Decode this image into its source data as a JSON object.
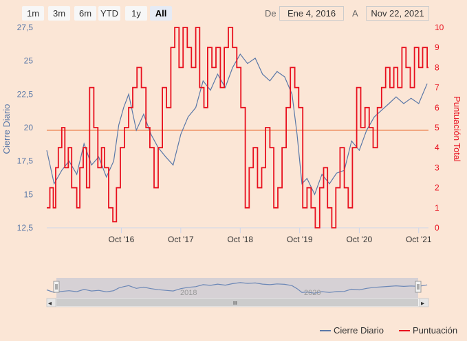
{
  "range_selector": {
    "buttons": [
      "1m",
      "3m",
      "6m",
      "YTD",
      "1y",
      "All"
    ],
    "selected": "All",
    "from_label": "De",
    "from_value": "Ene 4, 2016",
    "to_label": "A",
    "to_value": "Nov 22, 2021"
  },
  "navigator": {
    "year_labels": [
      "2018",
      "2020"
    ],
    "scroll_left_arrow": "◂",
    "scroll_right_arrow": "▸",
    "scroll_grip": "III"
  },
  "legend_placement": "bottom-right",
  "colors": {
    "price_line": "#5a78a8",
    "score_line": "#e8101e",
    "plot_band_line": "#f0a27a",
    "left_axis_text": "#5a78a8",
    "right_axis_text": "#e8101e",
    "navigator_mask": "#c9c9d4",
    "navigator_line": "#6b87b6"
  },
  "chart_data": {
    "type": "line",
    "x_type": "datetime",
    "x_range": [
      "2015-07-01",
      "2021-11-30"
    ],
    "x_ticks": [
      "Oct '16",
      "Oct '17",
      "Oct '18",
      "Oct '19",
      "Oct '20",
      "Oct '21"
    ],
    "x_tick_dates": [
      "2016-10-01",
      "2017-10-01",
      "2018-10-01",
      "2019-10-01",
      "2020-10-01",
      "2021-10-01"
    ],
    "y_left": {
      "label": "Cierre Diario",
      "range": [
        12.5,
        27.5
      ],
      "ticks": [
        "27,5",
        "25",
        "22,5",
        "20",
        "17,5",
        "15",
        "12,5"
      ],
      "tick_values": [
        27.5,
        25,
        22.5,
        20,
        17.5,
        15,
        12.5
      ]
    },
    "y_right": {
      "label": "Puntuación Total",
      "range": [
        0,
        10
      ],
      "ticks": [
        "10",
        "9",
        "8",
        "7",
        "6",
        "5",
        "4",
        "3",
        "2",
        "1",
        "0"
      ],
      "tick_values": [
        10,
        9,
        8,
        7,
        6,
        5,
        4,
        3,
        2,
        1,
        0
      ]
    },
    "plot_band_value_left_axis": 19.8,
    "grid": false,
    "series": [
      {
        "name": "Cierre Diario",
        "axis": "left",
        "x": [
          "2015-07-01",
          "2015-08-15",
          "2015-10-01",
          "2015-11-15",
          "2016-01-01",
          "2016-02-15",
          "2016-04-01",
          "2016-05-15",
          "2016-07-01",
          "2016-08-15",
          "2016-09-15",
          "2016-10-15",
          "2016-11-15",
          "2017-01-01",
          "2017-02-15",
          "2017-04-01",
          "2017-05-15",
          "2017-07-01",
          "2017-08-15",
          "2017-10-01",
          "2017-11-15",
          "2018-01-01",
          "2018-02-15",
          "2018-04-01",
          "2018-05-15",
          "2018-07-01",
          "2018-08-15",
          "2018-10-01",
          "2018-11-15",
          "2019-01-01",
          "2019-02-15",
          "2019-04-01",
          "2019-05-15",
          "2019-07-01",
          "2019-08-15",
          "2019-09-15",
          "2019-10-15",
          "2019-11-15",
          "2020-01-01",
          "2020-02-15",
          "2020-04-01",
          "2020-05-15",
          "2020-07-01",
          "2020-08-15",
          "2020-10-01",
          "2020-11-15",
          "2021-01-01",
          "2021-02-15",
          "2021-04-01",
          "2021-05-15",
          "2021-07-01",
          "2021-08-15",
          "2021-10-01",
          "2021-11-22"
        ],
        "y": [
          18.3,
          15.8,
          16.8,
          17.5,
          16.5,
          18.8,
          17.2,
          17.8,
          16.3,
          17.5,
          20.2,
          21.5,
          22.5,
          19.8,
          21.0,
          19.5,
          18.5,
          17.8,
          17.2,
          19.5,
          20.8,
          21.5,
          23.5,
          22.8,
          24.0,
          23.0,
          24.5,
          25.5,
          24.8,
          25.2,
          24.0,
          23.5,
          24.2,
          23.8,
          22.5,
          19.5,
          15.8,
          16.2,
          15.0,
          16.5,
          15.8,
          16.6,
          16.8,
          19.0,
          18.3,
          19.8,
          20.8,
          21.3,
          21.8,
          22.3,
          21.8,
          22.2,
          21.8,
          23.3
        ]
      },
      {
        "name": "Puntuación",
        "axis": "right",
        "x": [
          "2015-07-01",
          "2015-07-20",
          "2015-08-10",
          "2015-08-25",
          "2015-09-10",
          "2015-10-01",
          "2015-10-20",
          "2015-11-10",
          "2015-12-01",
          "2016-01-01",
          "2016-01-20",
          "2016-02-10",
          "2016-03-01",
          "2016-03-20",
          "2016-04-15",
          "2016-05-10",
          "2016-06-01",
          "2016-06-20",
          "2016-07-15",
          "2016-08-10",
          "2016-09-01",
          "2016-09-25",
          "2016-10-20",
          "2016-11-15",
          "2016-12-10",
          "2017-01-05",
          "2017-02-01",
          "2017-03-01",
          "2017-03-25",
          "2017-04-20",
          "2017-05-15",
          "2017-06-10",
          "2017-07-05",
          "2017-08-01",
          "2017-08-25",
          "2017-09-20",
          "2017-10-15",
          "2017-11-10",
          "2017-12-05",
          "2018-01-01",
          "2018-01-25",
          "2018-02-20",
          "2018-03-15",
          "2018-04-10",
          "2018-05-05",
          "2018-06-01",
          "2018-06-25",
          "2018-07-20",
          "2018-08-15",
          "2018-09-10",
          "2018-10-05",
          "2018-11-01",
          "2018-11-25",
          "2018-12-20",
          "2019-01-15",
          "2019-02-10",
          "2019-03-05",
          "2019-04-01",
          "2019-04-25",
          "2019-05-20",
          "2019-06-15",
          "2019-07-10",
          "2019-08-05",
          "2019-09-01",
          "2019-09-25",
          "2019-10-20",
          "2019-11-15",
          "2019-12-10",
          "2020-01-05",
          "2020-02-01",
          "2020-02-25",
          "2020-03-20",
          "2020-04-15",
          "2020-05-10",
          "2020-06-05",
          "2020-07-01",
          "2020-07-25",
          "2020-08-20",
          "2020-09-15",
          "2020-10-10",
          "2020-11-05",
          "2020-12-01",
          "2020-12-25",
          "2021-01-20",
          "2021-02-15",
          "2021-03-12",
          "2021-04-07",
          "2021-05-01",
          "2021-05-25",
          "2021-06-20",
          "2021-07-15",
          "2021-08-10",
          "2021-09-05",
          "2021-10-01",
          "2021-10-25",
          "2021-11-22"
        ],
        "y": [
          1,
          2,
          1,
          3,
          4,
          5,
          3,
          4,
          2,
          1,
          3,
          4,
          2,
          7,
          5,
          3,
          4,
          3,
          1,
          0.3,
          2,
          4,
          5,
          6,
          7,
          8,
          7,
          5,
          4,
          2,
          4,
          7,
          6,
          9,
          10,
          8,
          10,
          9,
          8,
          10,
          7,
          6,
          9,
          8,
          9,
          7,
          9,
          10,
          9,
          8,
          6,
          1,
          3,
          4,
          2,
          3,
          5,
          4,
          1,
          2,
          4,
          6,
          8,
          7,
          6,
          1,
          2,
          1,
          0,
          2,
          3,
          1,
          0,
          2,
          4,
          2,
          1,
          4,
          7,
          5,
          6,
          5,
          4,
          6,
          7,
          8,
          7,
          8,
          7,
          9,
          8,
          7,
          9,
          8,
          9,
          8
        ]
      }
    ]
  }
}
